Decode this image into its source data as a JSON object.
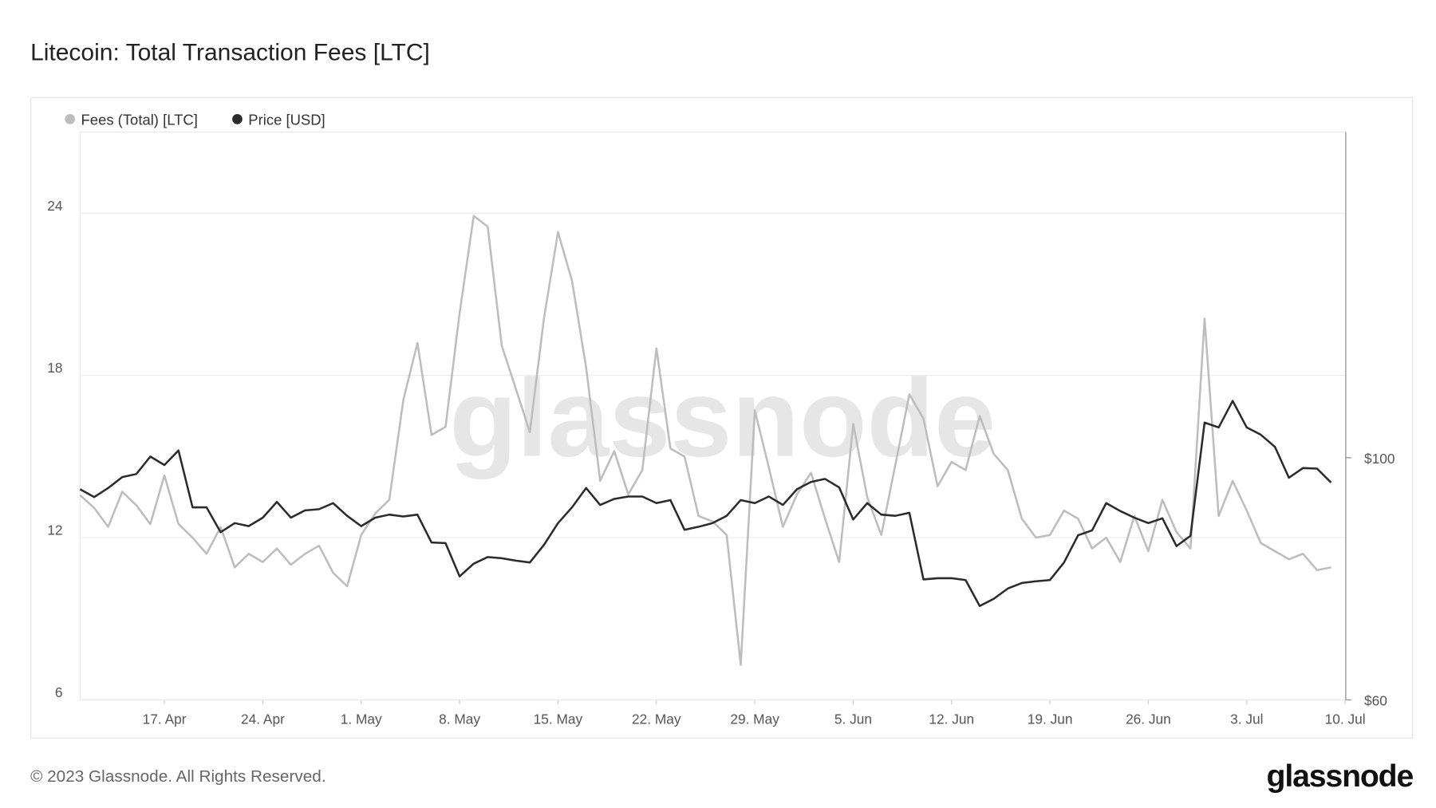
{
  "chart_data": {
    "type": "line",
    "title": "Litecoin: Total Transaction Fees [LTC]",
    "watermark": "glassnode",
    "categories": [
      null,
      null,
      null,
      null,
      null,
      null,
      "17. Apr",
      null,
      null,
      null,
      null,
      null,
      null,
      "24. Apr",
      null,
      null,
      null,
      null,
      null,
      null,
      "1. May",
      null,
      null,
      null,
      null,
      null,
      null,
      "8. May",
      null,
      null,
      null,
      null,
      null,
      null,
      "15. May",
      null,
      null,
      null,
      null,
      null,
      null,
      "22. May",
      null,
      null,
      null,
      null,
      null,
      null,
      "29. May",
      null,
      null,
      null,
      null,
      null,
      null,
      "5. Jun",
      null,
      null,
      null,
      null,
      null,
      null,
      "12. Jun",
      null,
      null,
      null,
      null,
      null,
      null,
      "19. Jun",
      null,
      null,
      null,
      null,
      null,
      null,
      "26. Jun",
      null,
      null,
      null,
      null,
      null,
      null,
      "3. Jul",
      null,
      null,
      null,
      null,
      null,
      null,
      "10. Jul"
    ],
    "series": [
      {
        "name": "Fees (Total) [LTC]",
        "color": "#bdbdbd",
        "values": [
          13.57,
          13.1,
          12.4,
          13.7,
          13.2,
          12.5,
          14.3,
          12.5,
          12.0,
          11.4,
          12.4,
          10.9,
          11.4,
          11.1,
          11.6,
          11.0,
          11.4,
          11.7,
          10.7,
          10.2,
          12.1,
          12.9,
          13.4,
          17.1,
          19.2,
          15.8,
          16.1,
          20.3,
          23.9,
          23.5,
          19.1,
          17.5,
          15.9,
          20.1,
          23.3,
          21.5,
          18.3,
          14.1,
          15.2,
          13.6,
          14.5,
          19.0,
          15.3,
          15.0,
          12.8,
          12.6,
          12.1,
          7.3,
          16.7,
          14.6,
          12.4,
          13.6,
          14.4,
          12.7,
          11.1,
          16.2,
          13.5,
          12.1,
          14.7,
          17.3,
          16.4,
          13.9,
          14.8,
          14.5,
          16.5,
          15.1,
          14.5,
          12.7,
          12.0,
          12.1,
          13.0,
          12.7,
          11.6,
          12.0,
          11.1,
          12.8,
          11.5,
          13.4,
          12.2,
          11.6,
          20.1,
          12.8,
          14.1,
          13.0,
          11.8,
          11.5,
          11.2,
          11.4,
          10.8,
          10.9,
          null
        ]
      },
      {
        "name": "Price [USD]",
        "color": "#2b2b2b",
        "axis": "y2",
        "values": [
          94.8,
          93.5,
          95.0,
          96.8,
          97.3,
          100.2,
          98.8,
          101.2,
          91.8,
          91.8,
          87.7,
          89.2,
          88.7,
          90.1,
          92.7,
          90.1,
          91.3,
          91.5,
          92.5,
          90.4,
          88.7,
          90.1,
          90.6,
          90.3,
          90.6,
          86.0,
          85.9,
          80.4,
          82.5,
          83.6,
          83.4,
          83.0,
          82.7,
          85.6,
          89.2,
          91.8,
          95.0,
          92.2,
          93.2,
          93.6,
          93.6,
          92.5,
          93.0,
          88.1,
          88.6,
          89.2,
          90.4,
          93.0,
          92.5,
          93.6,
          92.2,
          94.8,
          96.0,
          96.5,
          95.1,
          89.8,
          92.5,
          90.6,
          90.4,
          90.9,
          79.9,
          80.1,
          80.1,
          79.8,
          75.5,
          76.7,
          78.4,
          79.3,
          79.6,
          79.8,
          82.7,
          87.2,
          88.0,
          92.5,
          91.2,
          90.1,
          89.2,
          90.0,
          85.4,
          87.1,
          105.8,
          105.0,
          109.4,
          105.0,
          103.8,
          101.8,
          96.7,
          98.3,
          98.2,
          95.9,
          null
        ]
      }
    ],
    "ylim": [
      6,
      27
    ],
    "yticks": [
      6,
      12,
      18,
      24
    ],
    "y2lim": [
      60,
      153.8
    ],
    "y2ticks": [
      {
        "value": 60,
        "label": "$60"
      },
      {
        "value": 100,
        "label": "$100"
      }
    ],
    "grid": true
  },
  "footer": {
    "copyright": "© 2023 Glassnode. All Rights Reserved.",
    "logo": "glassnode"
  }
}
